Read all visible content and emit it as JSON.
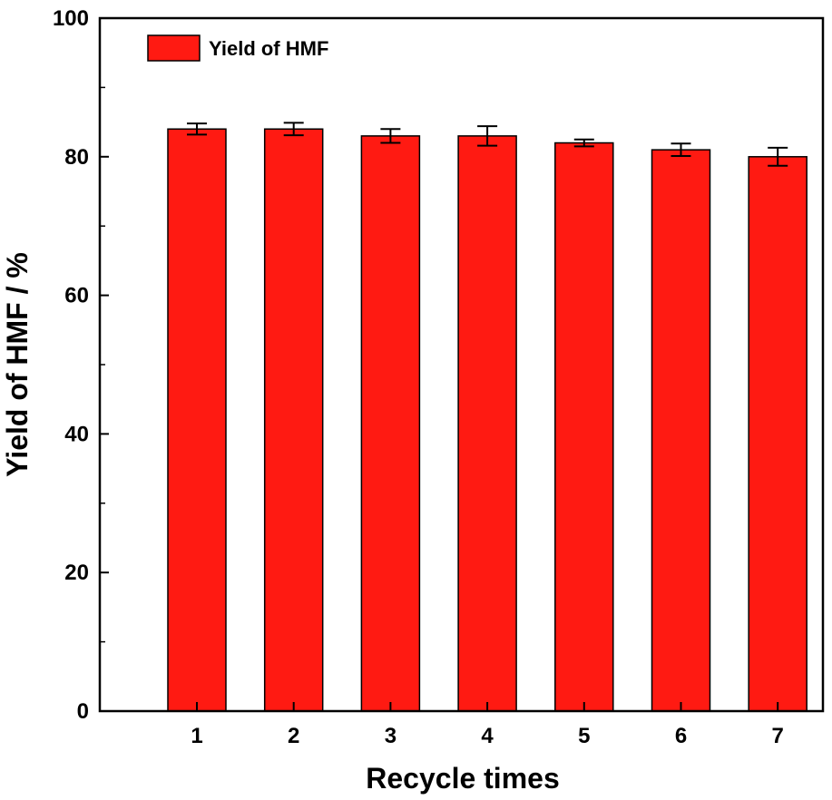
{
  "chart_data": {
    "type": "bar",
    "categories": [
      "1",
      "2",
      "3",
      "4",
      "5",
      "6",
      "7"
    ],
    "series": [
      {
        "name": "Yield of HMF",
        "values": [
          84,
          84,
          83,
          83,
          82,
          81,
          80
        ],
        "errors": [
          0.8,
          0.9,
          1.0,
          1.4,
          0.5,
          0.9,
          1.3
        ],
        "color": "#ff1a12"
      }
    ],
    "xlabel": "Recycle times",
    "ylabel": "Yield of HMF / %",
    "ylim": [
      0,
      100
    ],
    "yticks": [
      "0",
      "20",
      "40",
      "60",
      "80",
      "100"
    ],
    "grid": false,
    "legend_position": "top-left"
  }
}
